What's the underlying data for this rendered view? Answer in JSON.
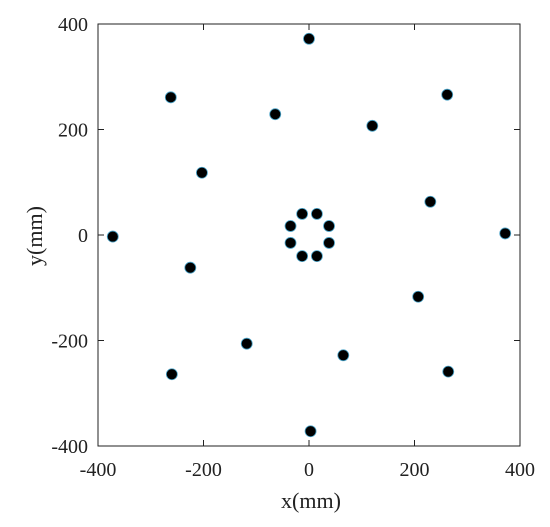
{
  "chart_data": {
    "type": "scatter",
    "xlabel": "x(mm)",
    "ylabel": "y(mm)",
    "xlim": [
      -400,
      400
    ],
    "ylim": [
      -400,
      400
    ],
    "xticks": [
      -400,
      -200,
      0,
      200,
      400
    ],
    "yticks": [
      -400,
      -200,
      0,
      200,
      400
    ],
    "xtick_labels": [
      "-400",
      "-200",
      "0",
      "200",
      "400"
    ],
    "ytick_labels": [
      "-400",
      "-200",
      "0",
      "200",
      "400"
    ],
    "grid": false,
    "marker_fill": "#000000",
    "marker_edge": "#4aa3c8",
    "points": [
      {
        "x": 0,
        "y": 372
      },
      {
        "x": -262,
        "y": 261
      },
      {
        "x": 262,
        "y": 266
      },
      {
        "x": -64,
        "y": 229
      },
      {
        "x": 120,
        "y": 207
      },
      {
        "x": -203,
        "y": 118
      },
      {
        "x": 230,
        "y": 63
      },
      {
        "x": -372,
        "y": -3
      },
      {
        "x": 372,
        "y": 3
      },
      {
        "x": -225,
        "y": -62
      },
      {
        "x": 207,
        "y": -117
      },
      {
        "x": -118,
        "y": -206
      },
      {
        "x": 65,
        "y": -228
      },
      {
        "x": -260,
        "y": -264
      },
      {
        "x": 264,
        "y": -259
      },
      {
        "x": 3,
        "y": -372
      },
      {
        "x": -13,
        "y": 40
      },
      {
        "x": 15,
        "y": 40
      },
      {
        "x": -35,
        "y": 17
      },
      {
        "x": 38,
        "y": 17
      },
      {
        "x": -35,
        "y": -15
      },
      {
        "x": 38,
        "y": -15
      },
      {
        "x": -13,
        "y": -40
      },
      {
        "x": 15,
        "y": -40
      }
    ]
  }
}
